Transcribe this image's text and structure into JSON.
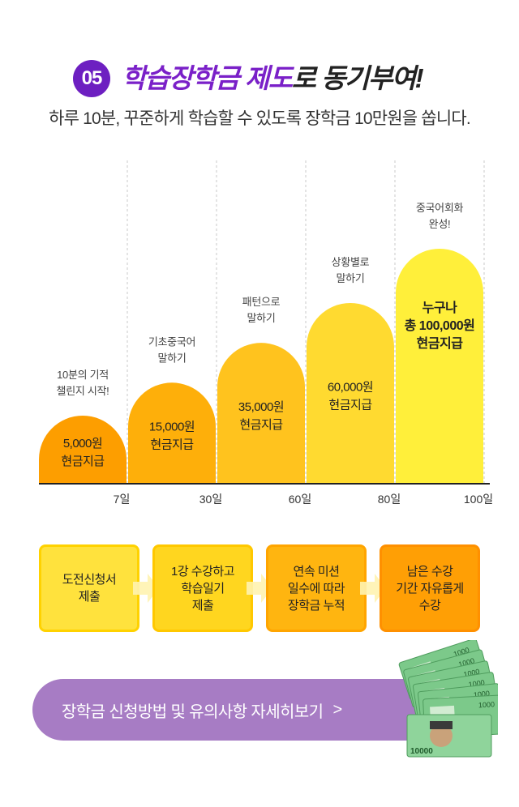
{
  "header": {
    "badge": "05",
    "title_purple": "학습장학금 제도",
    "title_dark": "로 동기부여!",
    "subtitle": "하루 10분, 꾸준하게 학습할 수 있도록 장학금 10만원을 쏩니다."
  },
  "chart_data": {
    "type": "bar",
    "categories": [
      "7일",
      "30일",
      "60일",
      "80일",
      "100일"
    ],
    "values": [
      5000,
      15000,
      35000,
      60000,
      100000
    ],
    "bar_labels": [
      [
        "5,000원",
        "현금지급"
      ],
      [
        "15,000원",
        "현금지급"
      ],
      [
        "35,000원",
        "현금지급"
      ],
      [
        "60,000원",
        "현금지급"
      ],
      [
        "누구나",
        "총 100,000원",
        "현금지급"
      ]
    ],
    "annotations": [
      [
        "10분의 기적",
        "챌린지 시작!"
      ],
      [
        "기초중국어",
        "말하기"
      ],
      [
        "패턴으로",
        "말하기"
      ],
      [
        "상황별로",
        "말하기"
      ],
      [
        "중국어회화",
        "완성!"
      ]
    ],
    "colors": [
      "#fd9e00",
      "#feaf0a",
      "#ffc31e",
      "#ffda30",
      "#ffef3a"
    ],
    "xlabel": "",
    "ylabel": ""
  },
  "steps": [
    {
      "label": "도전신청서\n제출",
      "bg": "#ffe23d",
      "border": "#ffd200"
    },
    {
      "label": "1강 수강하고\n학습일기\n제출",
      "bg": "#ffd61f",
      "border": "#ffc800"
    },
    {
      "label": "연속 미션\n일수에 따라\n장학금 누적",
      "bg": "#ffb510",
      "border": "#ffa500"
    },
    {
      "label": "남은 수강\n기간 자유롭게\n수강",
      "bg": "#ff9f05",
      "border": "#ff9000"
    }
  ],
  "cta": {
    "label": "장학금 신청방법 및 유의사항 자세히보기",
    "arrow": ">"
  },
  "money": {
    "denomination": "10000",
    "bill_text": "1000",
    "color": "#7cc98a"
  }
}
